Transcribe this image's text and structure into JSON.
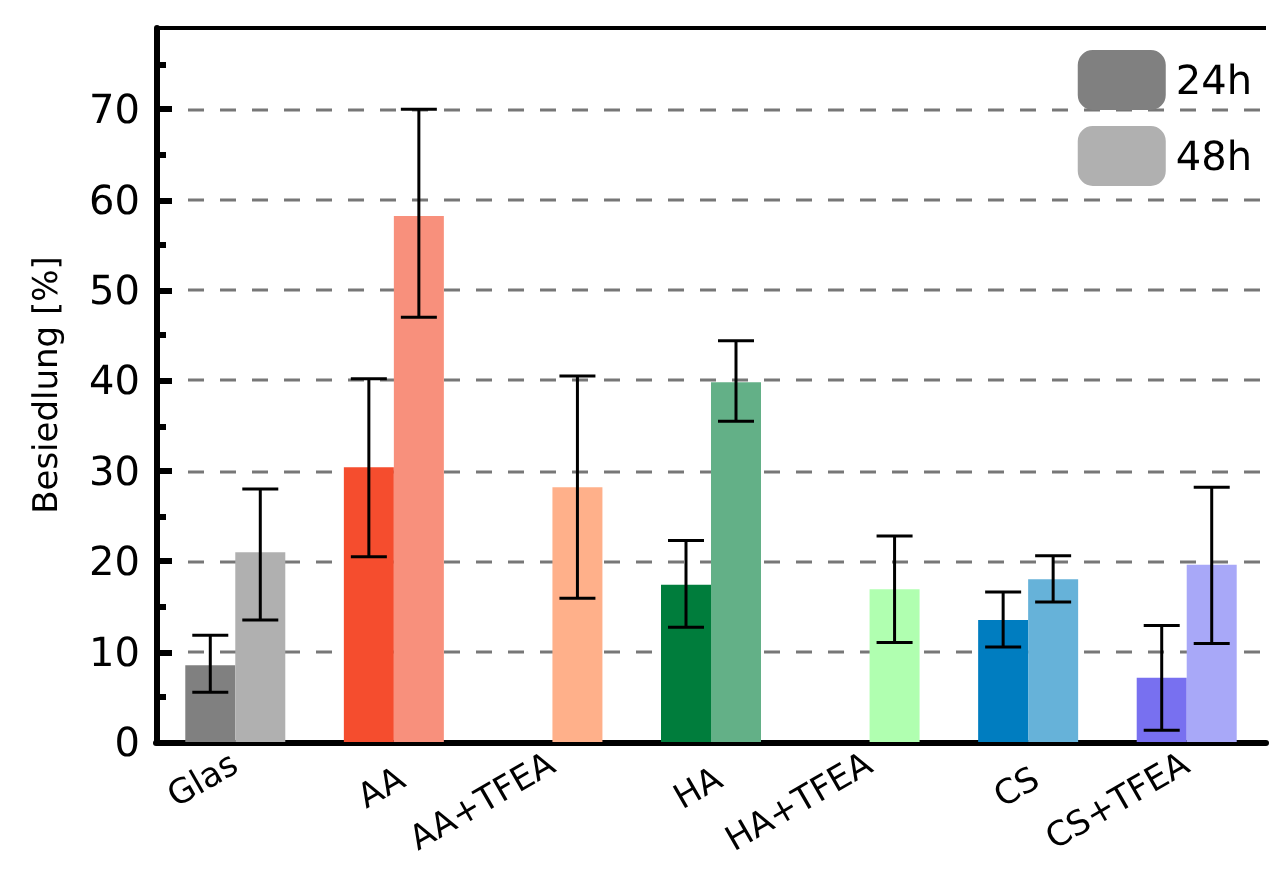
{
  "chart_data": {
    "type": "bar",
    "ylabel": "Besiedlung [%]",
    "categories": [
      "Glas",
      "AA",
      "AA+TFEA",
      "HA",
      "HA+TFEA",
      "CS",
      "CS+TFEA"
    ],
    "series": [
      {
        "name": "24h",
        "color": "#808080",
        "values": [
          8.5,
          30.4,
          null,
          17.4,
          null,
          13.5,
          7.1
        ],
        "colors": [
          "#808080",
          "#f54d2e",
          null,
          "#007d3c",
          null,
          "#007dc0",
          "#7870f0"
        ],
        "errors": [
          [
            5.5,
            11.8
          ],
          [
            20.5,
            40.2
          ],
          null,
          [
            12.7,
            22.3
          ],
          null,
          [
            10.5,
            16.6
          ],
          [
            1.3,
            12.9
          ]
        ]
      },
      {
        "name": "48h",
        "color": "#b0b0b0",
        "values": [
          21,
          58.2,
          28.2,
          39.8,
          16.9,
          18,
          19.6
        ],
        "colors": [
          "#b0b0b0",
          "#f8907c",
          "#ffb08a",
          "#63b087",
          "#b0ffb0",
          "#66b2d9",
          "#a8a8f8"
        ],
        "errors": [
          [
            13.5,
            28
          ],
          [
            47,
            70
          ],
          [
            15.9,
            40.5
          ],
          [
            35.5,
            44.4
          ],
          [
            11,
            22.8
          ],
          [
            15.5,
            20.6
          ],
          [
            10.9,
            28.2
          ]
        ]
      }
    ],
    "ylim": [
      0,
      79
    ],
    "yticks": [
      0,
      10,
      20,
      30,
      40,
      50,
      60,
      70
    ],
    "grid": "y",
    "legend": "top right"
  }
}
